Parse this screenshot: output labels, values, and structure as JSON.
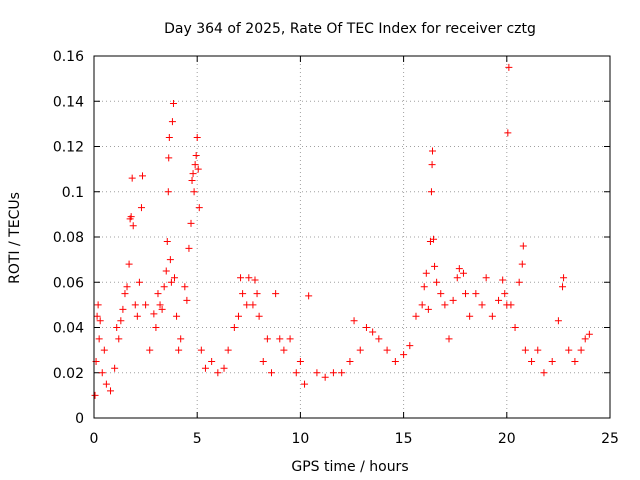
{
  "chart_data": {
    "type": "scatter",
    "title": "Day 364 of 2025, Rate Of TEC Index for receiver cztg",
    "xlabel": "GPS time / hours",
    "ylabel": "ROTI / TECUs",
    "xlim": [
      0,
      25
    ],
    "ylim": [
      0,
      0.16
    ],
    "xticks": [
      0,
      5,
      10,
      15,
      20,
      25
    ],
    "xtick_labels": [
      "0",
      "5",
      "10",
      "15",
      "20",
      "25"
    ],
    "yticks": [
      0,
      0.02,
      0.04,
      0.06,
      0.08,
      0.1,
      0.12,
      0.14,
      0.16
    ],
    "ytick_labels": [
      "0",
      "0.02",
      "0.04",
      "0.06",
      "0.08",
      "0.1",
      "0.12",
      "0.14",
      "0.16"
    ],
    "grid": true,
    "marker": "+",
    "color": "#ff0000",
    "series": [
      {
        "name": "ROTI",
        "points": [
          [
            0.05,
            0.01
          ],
          [
            0.1,
            0.025
          ],
          [
            0.15,
            0.045
          ],
          [
            0.2,
            0.05
          ],
          [
            0.25,
            0.035
          ],
          [
            0.3,
            0.043
          ],
          [
            0.4,
            0.02
          ],
          [
            0.5,
            0.03
          ],
          [
            0.6,
            0.015
          ],
          [
            0.8,
            0.012
          ],
          [
            1.0,
            0.022
          ],
          [
            1.1,
            0.04
          ],
          [
            1.2,
            0.035
          ],
          [
            1.3,
            0.043
          ],
          [
            1.4,
            0.048
          ],
          [
            1.5,
            0.055
          ],
          [
            1.6,
            0.058
          ],
          [
            1.7,
            0.068
          ],
          [
            1.75,
            0.088
          ],
          [
            1.8,
            0.089
          ],
          [
            1.85,
            0.106
          ],
          [
            1.9,
            0.085
          ],
          [
            2.0,
            0.05
          ],
          [
            2.1,
            0.045
          ],
          [
            2.2,
            0.06
          ],
          [
            2.3,
            0.093
          ],
          [
            2.35,
            0.107
          ],
          [
            2.5,
            0.05
          ],
          [
            2.7,
            0.03
          ],
          [
            2.9,
            0.046
          ],
          [
            3.0,
            0.04
          ],
          [
            3.1,
            0.055
          ],
          [
            3.2,
            0.05
          ],
          [
            3.3,
            0.048
          ],
          [
            3.4,
            0.058
          ],
          [
            3.5,
            0.065
          ],
          [
            3.55,
            0.078
          ],
          [
            3.6,
            0.1
          ],
          [
            3.62,
            0.115
          ],
          [
            3.65,
            0.124
          ],
          [
            3.7,
            0.07
          ],
          [
            3.75,
            0.06
          ],
          [
            3.8,
            0.131
          ],
          [
            3.85,
            0.139
          ],
          [
            3.9,
            0.062
          ],
          [
            4.0,
            0.045
          ],
          [
            4.1,
            0.03
          ],
          [
            4.2,
            0.035
          ],
          [
            4.4,
            0.058
          ],
          [
            4.5,
            0.052
          ],
          [
            4.6,
            0.075
          ],
          [
            4.7,
            0.086
          ],
          [
            4.75,
            0.105
          ],
          [
            4.8,
            0.108
          ],
          [
            4.85,
            0.1
          ],
          [
            4.9,
            0.112
          ],
          [
            4.95,
            0.116
          ],
          [
            5.0,
            0.124
          ],
          [
            5.05,
            0.11
          ],
          [
            5.1,
            0.093
          ],
          [
            5.2,
            0.03
          ],
          [
            5.4,
            0.022
          ],
          [
            5.7,
            0.025
          ],
          [
            6.0,
            0.02
          ],
          [
            6.3,
            0.022
          ],
          [
            6.5,
            0.03
          ],
          [
            6.8,
            0.04
          ],
          [
            7.0,
            0.045
          ],
          [
            7.1,
            0.062
          ],
          [
            7.2,
            0.055
          ],
          [
            7.4,
            0.05
          ],
          [
            7.5,
            0.062
          ],
          [
            7.7,
            0.05
          ],
          [
            7.8,
            0.061
          ],
          [
            7.9,
            0.055
          ],
          [
            8.0,
            0.045
          ],
          [
            8.2,
            0.025
          ],
          [
            8.4,
            0.035
          ],
          [
            8.6,
            0.02
          ],
          [
            8.8,
            0.055
          ],
          [
            9.0,
            0.035
          ],
          [
            9.2,
            0.03
          ],
          [
            9.5,
            0.035
          ],
          [
            9.8,
            0.02
          ],
          [
            10.0,
            0.025
          ],
          [
            10.2,
            0.015
          ],
          [
            10.4,
            0.054
          ],
          [
            10.8,
            0.02
          ],
          [
            11.2,
            0.018
          ],
          [
            11.6,
            0.02
          ],
          [
            12.0,
            0.02
          ],
          [
            12.4,
            0.025
          ],
          [
            12.6,
            0.043
          ],
          [
            12.9,
            0.03
          ],
          [
            13.2,
            0.04
          ],
          [
            13.5,
            0.038
          ],
          [
            13.8,
            0.035
          ],
          [
            14.2,
            0.03
          ],
          [
            14.6,
            0.025
          ],
          [
            15.0,
            0.028
          ],
          [
            15.3,
            0.032
          ],
          [
            15.6,
            0.045
          ],
          [
            15.9,
            0.05
          ],
          [
            16.0,
            0.058
          ],
          [
            16.1,
            0.064
          ],
          [
            16.2,
            0.048
          ],
          [
            16.3,
            0.078
          ],
          [
            16.35,
            0.1
          ],
          [
            16.38,
            0.112
          ],
          [
            16.4,
            0.118
          ],
          [
            16.45,
            0.079
          ],
          [
            16.5,
            0.067
          ],
          [
            16.6,
            0.06
          ],
          [
            16.8,
            0.055
          ],
          [
            17.0,
            0.05
          ],
          [
            17.2,
            0.035
          ],
          [
            17.4,
            0.052
          ],
          [
            17.6,
            0.062
          ],
          [
            17.7,
            0.066
          ],
          [
            17.9,
            0.064
          ],
          [
            18.0,
            0.055
          ],
          [
            18.2,
            0.045
          ],
          [
            18.5,
            0.055
          ],
          [
            18.8,
            0.05
          ],
          [
            19.0,
            0.062
          ],
          [
            19.3,
            0.045
          ],
          [
            19.6,
            0.052
          ],
          [
            19.8,
            0.061
          ],
          [
            19.9,
            0.055
          ],
          [
            20.0,
            0.05
          ],
          [
            20.05,
            0.126
          ],
          [
            20.1,
            0.155
          ],
          [
            20.2,
            0.05
          ],
          [
            20.4,
            0.04
          ],
          [
            20.6,
            0.06
          ],
          [
            20.75,
            0.068
          ],
          [
            20.8,
            0.076
          ],
          [
            20.9,
            0.03
          ],
          [
            21.2,
            0.025
          ],
          [
            21.5,
            0.03
          ],
          [
            21.8,
            0.02
          ],
          [
            22.2,
            0.025
          ],
          [
            22.5,
            0.043
          ],
          [
            22.7,
            0.058
          ],
          [
            22.75,
            0.062
          ],
          [
            23.0,
            0.03
          ],
          [
            23.3,
            0.025
          ],
          [
            23.6,
            0.03
          ],
          [
            23.8,
            0.035
          ],
          [
            24.0,
            0.037
          ]
        ]
      }
    ]
  }
}
